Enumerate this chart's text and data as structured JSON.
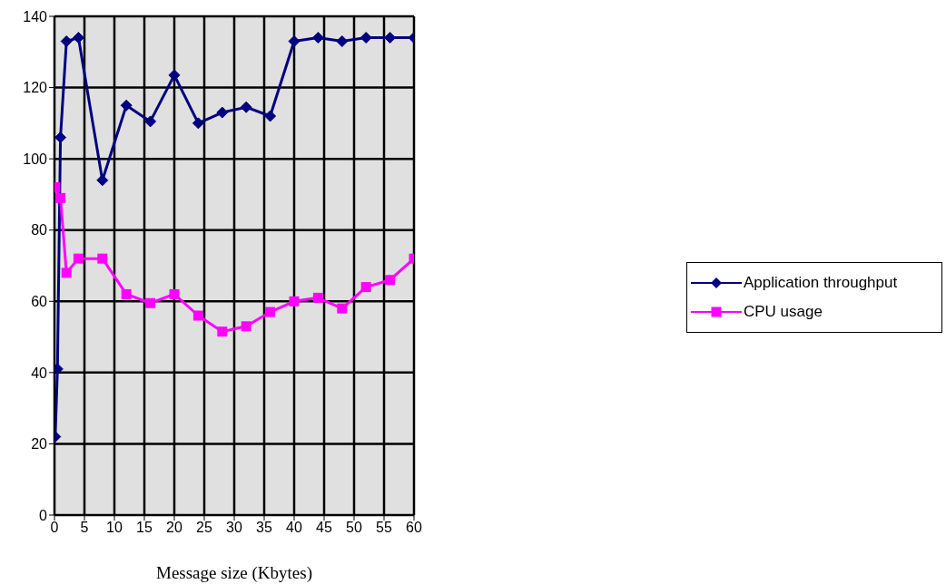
{
  "chart_data": {
    "type": "line",
    "xlabel": "Message size (Kbytes)",
    "xlim": [
      0,
      60
    ],
    "xticks": [
      0,
      5,
      10,
      15,
      20,
      25,
      30,
      35,
      40,
      45,
      50,
      55,
      60
    ],
    "ylim": [
      0,
      140
    ],
    "yticks": [
      0,
      20,
      40,
      60,
      80,
      100,
      120,
      140
    ],
    "grid": true,
    "legend": "right",
    "series": [
      {
        "name": "Application throughput",
        "color": "#000080",
        "marker": "diamond",
        "x": [
          0.125,
          0.5,
          1,
          2,
          4,
          8,
          12,
          16,
          20,
          24,
          28,
          32,
          36,
          40,
          44,
          48,
          52,
          56,
          60
        ],
        "values": [
          22,
          41,
          106,
          133,
          134,
          94,
          115,
          110.5,
          123.5,
          110,
          113,
          114.5,
          112,
          133,
          134,
          133,
          134,
          134,
          134
        ]
      },
      {
        "name": "CPU usage",
        "color": "#ff00ff",
        "marker": "square",
        "x": [
          0.125,
          1,
          2,
          4,
          8,
          12,
          16,
          20,
          24,
          28,
          32,
          36,
          40,
          44,
          48,
          52,
          56,
          60
        ],
        "values": [
          92,
          89,
          68,
          72,
          72,
          62,
          59.5,
          62,
          56,
          51.5,
          53,
          57,
          60,
          61,
          58,
          64,
          66,
          72
        ]
      }
    ]
  }
}
